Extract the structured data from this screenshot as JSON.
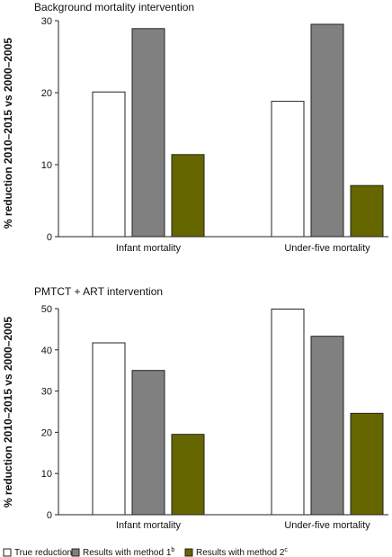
{
  "chart_data": [
    {
      "type": "bar",
      "title": "Background mortality intervention",
      "ylabel": "% reduction 2010–2015 vs 2000–2005",
      "xlabel": "",
      "categories": [
        "Infant mortality",
        "Under-five mortality"
      ],
      "ylim": [
        0,
        30
      ],
      "yticks": [
        0,
        10,
        20,
        30
      ],
      "series": [
        {
          "name": "True reduction",
          "values": [
            20.1,
            18.8
          ]
        },
        {
          "name": "Results with method 1",
          "values": [
            28.9,
            29.5
          ]
        },
        {
          "name": "Results with method 2",
          "values": [
            11.4,
            7.1
          ]
        }
      ]
    },
    {
      "type": "bar",
      "title": "PMTCT + ART intervention",
      "ylabel": "% reduction 2010–2015 vs 2000–2005",
      "xlabel": "",
      "categories": [
        "Infant mortality",
        "Under-five mortality"
      ],
      "ylim": [
        0,
        50
      ],
      "yticks": [
        0,
        10,
        20,
        30,
        40,
        50
      ],
      "series": [
        {
          "name": "True reduction",
          "values": [
            41.7,
            49.9
          ]
        },
        {
          "name": "Results with method 1",
          "values": [
            35.0,
            43.3
          ]
        },
        {
          "name": "Results with method 2",
          "values": [
            19.5,
            24.6
          ]
        }
      ]
    }
  ],
  "legend": {
    "items": [
      {
        "label": "True reduction",
        "sup": "",
        "color": "#ffffff"
      },
      {
        "label": "Results with method 1",
        "sup": "b",
        "color": "#808080"
      },
      {
        "label": "Results with method 2",
        "sup": "c",
        "color": "#666600"
      }
    ]
  },
  "colors": {
    "series": [
      "#ffffff",
      "#808080",
      "#666600"
    ],
    "outline": "#222222"
  }
}
